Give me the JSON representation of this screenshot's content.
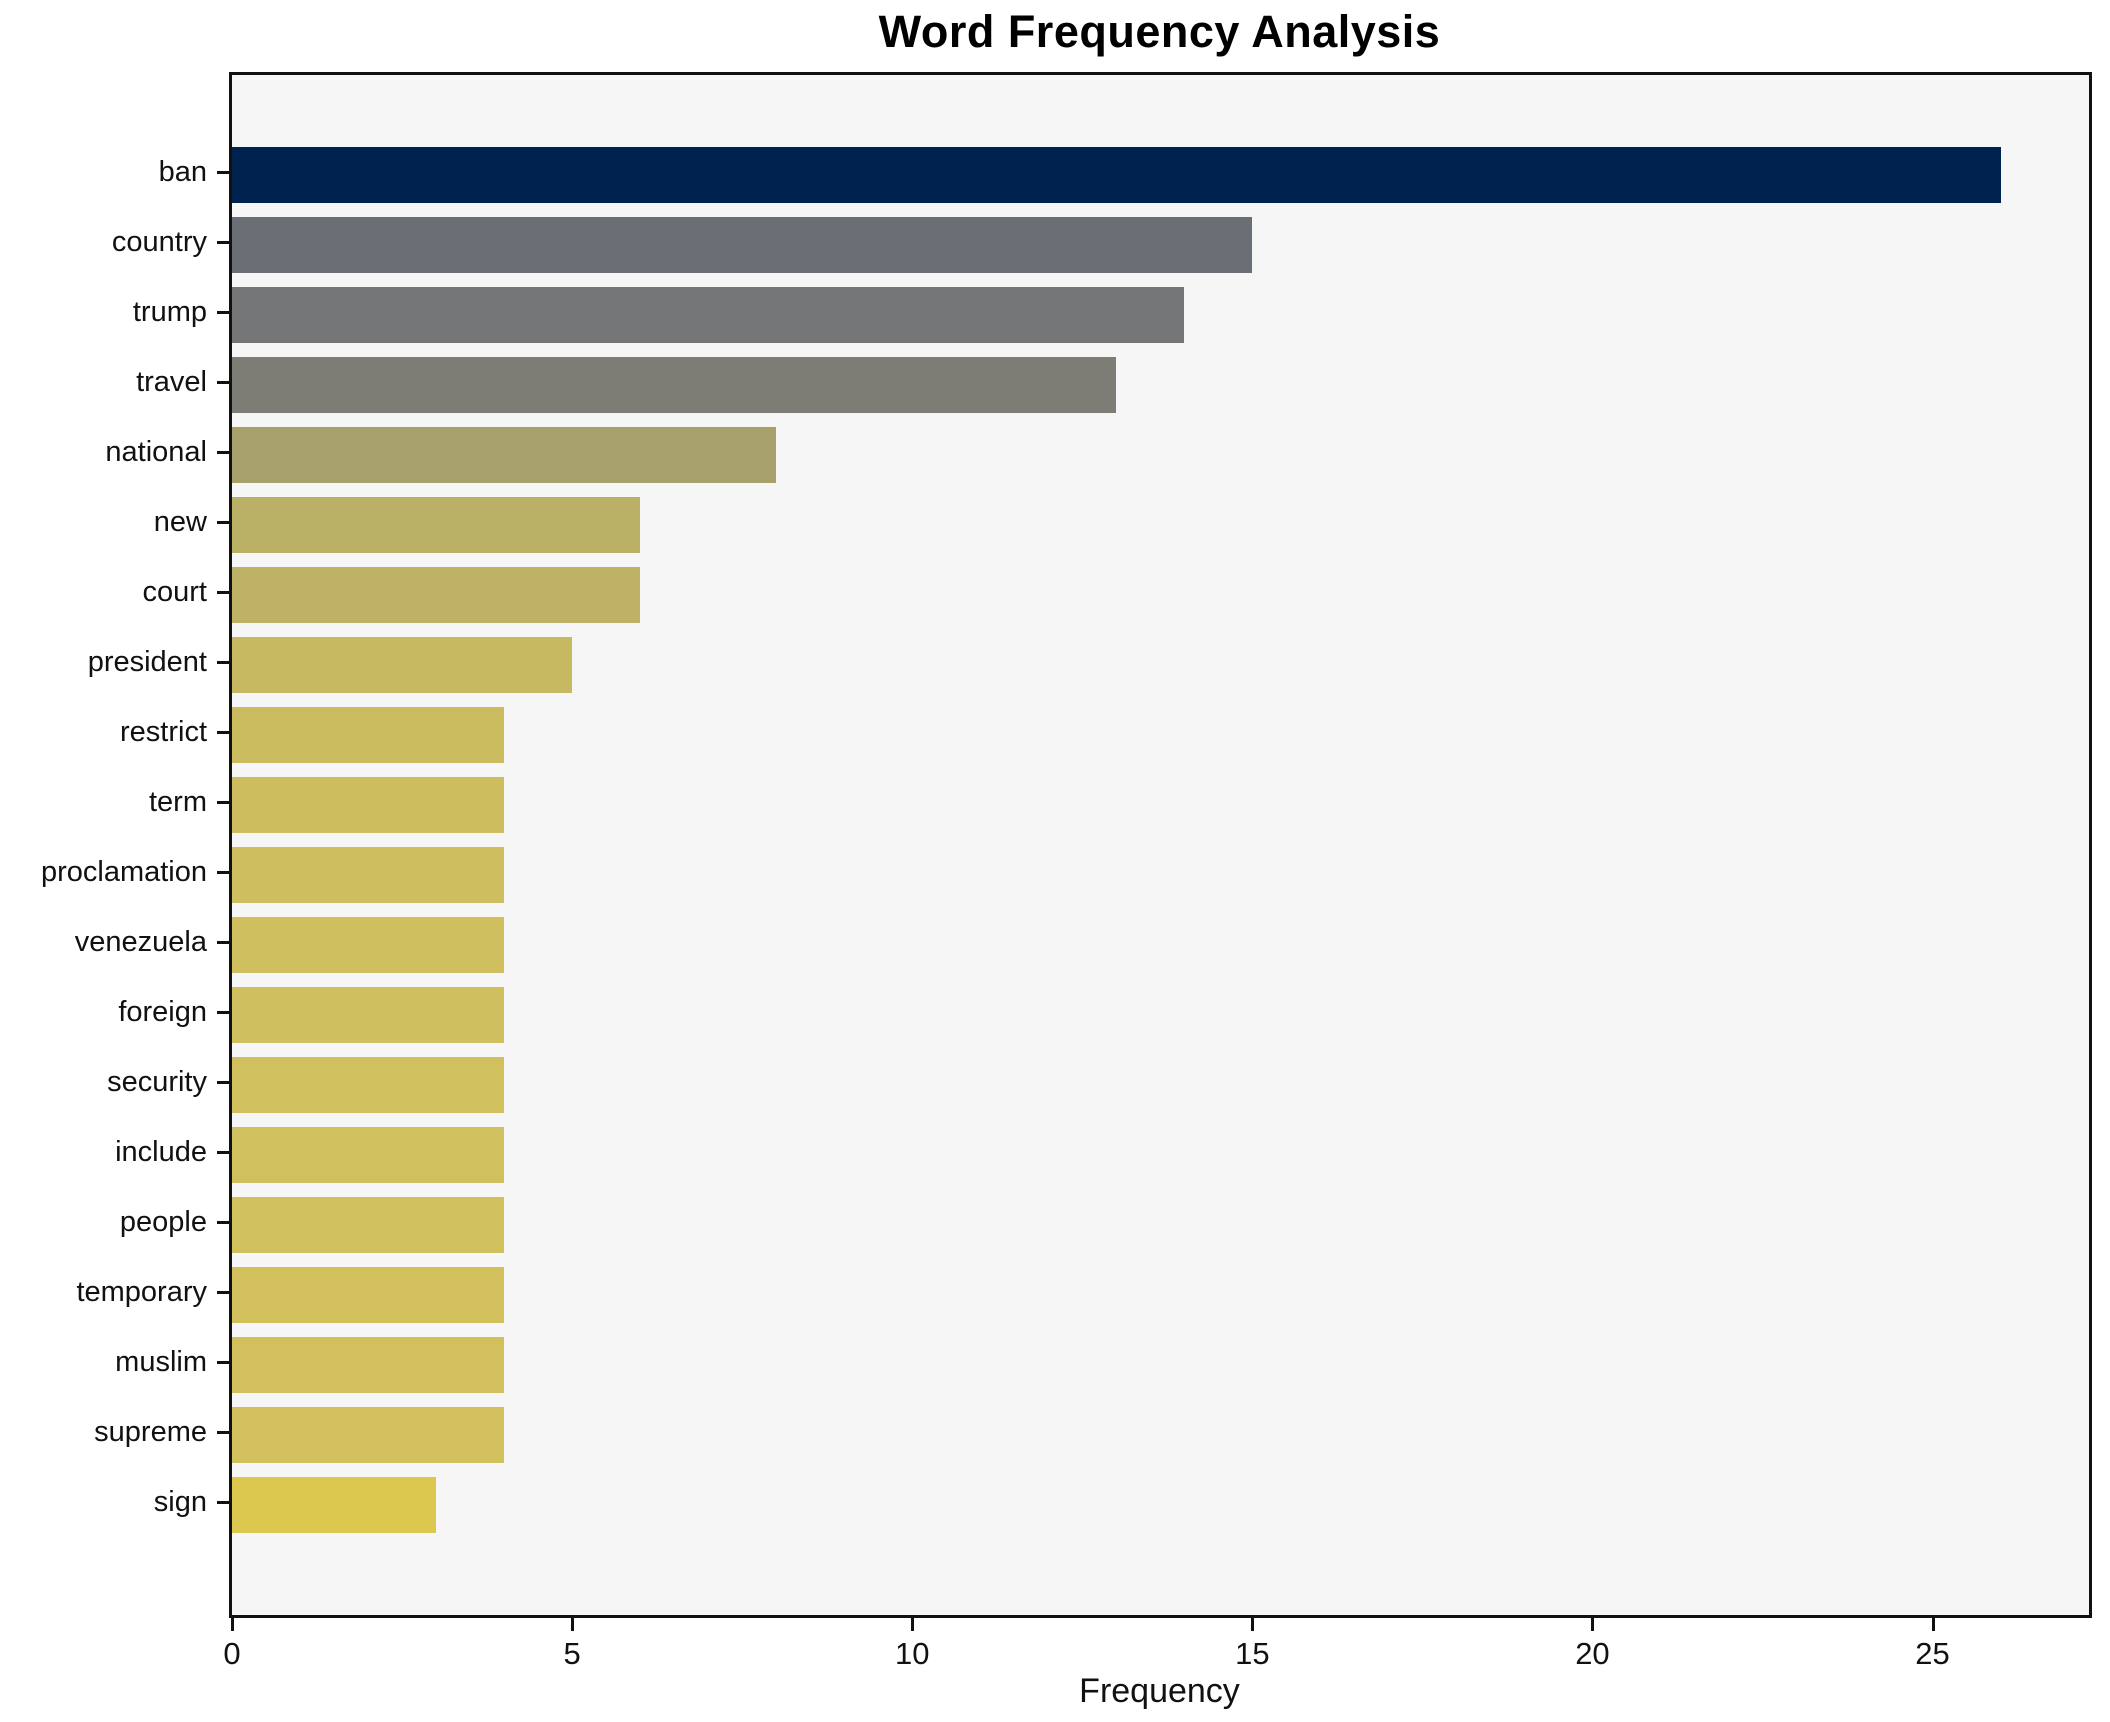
{
  "chart_data": {
    "type": "bar",
    "orientation": "horizontal",
    "title": "Word Frequency Analysis",
    "xlabel": "Frequency",
    "ylabel": "",
    "categories": [
      "ban",
      "country",
      "trump",
      "travel",
      "national",
      "new",
      "court",
      "president",
      "restrict",
      "term",
      "proclamation",
      "venezuela",
      "foreign",
      "security",
      "include",
      "people",
      "temporary",
      "muslim",
      "supreme",
      "sign"
    ],
    "values": [
      26,
      15,
      14,
      13,
      8,
      6,
      6,
      5,
      4,
      4,
      4,
      4,
      4,
      4,
      4,
      4,
      4,
      4,
      4,
      3
    ],
    "bar_colors": [
      "#00224e",
      "#6a6e75",
      "#757677",
      "#7e7d75",
      "#a7a16b",
      "#bab066",
      "#bdb265",
      "#c7b962",
      "#ccbc60",
      "#cebd5f",
      "#cfbe5f",
      "#d0bf5e",
      "#d0bf5e",
      "#d1c05e",
      "#d1c05e",
      "#d1c05e",
      "#d2c05d",
      "#d2c05d",
      "#d2c15d",
      "#dcc84f"
    ],
    "xticks": [
      0,
      5,
      10,
      15,
      20,
      25
    ],
    "xlim": [
      0,
      27.3
    ],
    "grid": false,
    "legend_position": "none",
    "plot_background": "#f6f6f7",
    "figure_background": "#ffffff",
    "spine_color": "#111111"
  }
}
